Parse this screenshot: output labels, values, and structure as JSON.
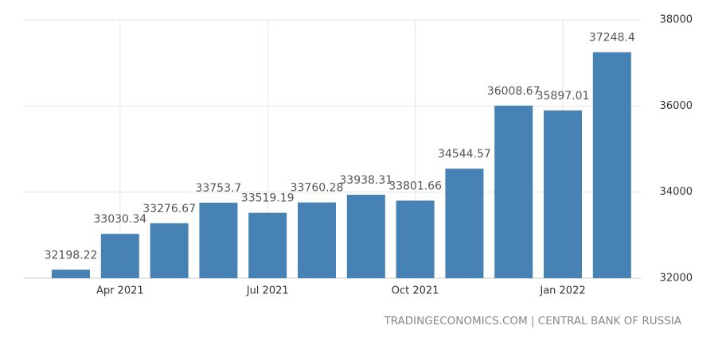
{
  "chart_data": {
    "type": "bar",
    "categories": [
      null,
      "Apr 2021",
      null,
      null,
      "Jul 2021",
      null,
      null,
      "Oct 2021",
      null,
      null,
      "Jan 2022",
      null
    ],
    "values": [
      32198.22,
      33030.34,
      33276.67,
      33753.7,
      33519.19,
      33760.28,
      33938.31,
      33801.66,
      34544.57,
      36008.67,
      35897.01,
      37248.4
    ],
    "color": "#4682b4",
    "ylim": [
      32000,
      38000
    ],
    "yticks": [
      32000,
      34000,
      36000,
      38000
    ],
    "grid": true,
    "source": "TRADINGECONOMICS.COM | CENTRAL BANK OF RUSSIA"
  }
}
